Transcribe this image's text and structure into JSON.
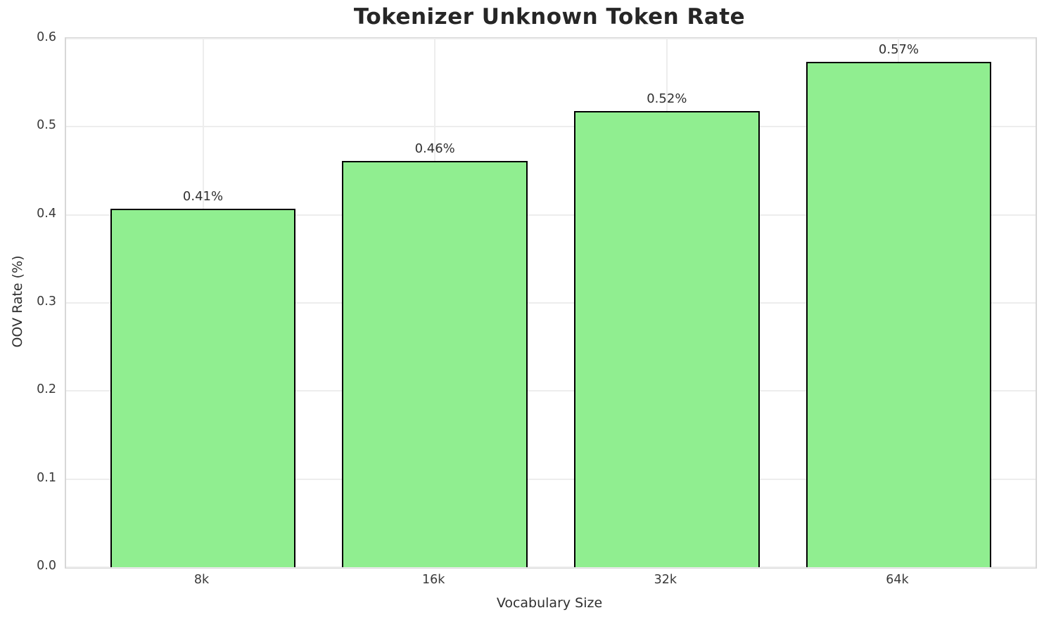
{
  "chart_data": {
    "type": "bar",
    "title": "Tokenizer Unknown Token Rate",
    "xlabel": "Vocabulary Size",
    "ylabel": "OOV Rate (%)",
    "categories": [
      "8k",
      "16k",
      "32k",
      "64k"
    ],
    "values": [
      0.407,
      0.461,
      0.518,
      0.574
    ],
    "bar_labels": [
      "0.41%",
      "0.46%",
      "0.52%",
      "0.57%"
    ],
    "ylim": [
      0.0,
      0.6
    ],
    "yticks": [
      0.0,
      0.1,
      0.2,
      0.3,
      0.4,
      0.5,
      0.6
    ],
    "ytick_labels": [
      "0.0",
      "0.1",
      "0.2",
      "0.3",
      "0.4",
      "0.5",
      "0.6"
    ],
    "grid": true,
    "legend": "none",
    "colors": {
      "bar_fill": "#90ee90",
      "bar_edge": "#000000",
      "grid_color": "#ededed",
      "spine_color": "#d7d7d7",
      "title_color": "#262626",
      "tick_color": "#3a3a3a",
      "label_color": "#2f2f2f",
      "background": "#ffffff"
    }
  }
}
